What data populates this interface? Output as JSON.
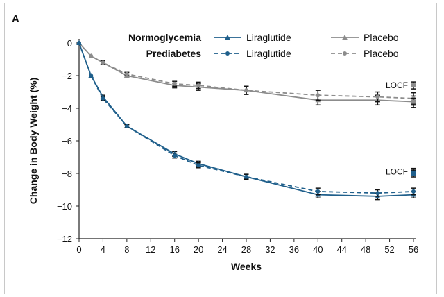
{
  "chart_data": {
    "type": "line",
    "panel_label": "A",
    "title": "",
    "xlabel": "Weeks",
    "ylabel": "Change in Body Weight (%)",
    "xlim": [
      0,
      56
    ],
    "ylim": [
      -12,
      0
    ],
    "x_ticks": [
      0,
      4,
      8,
      12,
      16,
      20,
      24,
      28,
      32,
      36,
      40,
      44,
      48,
      52,
      56
    ],
    "y_ticks": [
      0,
      -2,
      -4,
      -6,
      -8,
      -10,
      -12
    ],
    "x_tick_labels": [
      "0",
      "4",
      "8",
      "12",
      "16",
      "20",
      "24",
      "28",
      "32",
      "36",
      "40",
      "44",
      "48",
      "52",
      "56"
    ],
    "y_tick_labels": [
      "0",
      "−2",
      "−4",
      "−6",
      "−8",
      "−10",
      "−12"
    ],
    "legend": {
      "placement": "top-right",
      "group_labels": [
        "Normoglycemia",
        "Prediabetes"
      ],
      "entries": [
        {
          "group": "Normoglycemia",
          "label": "Liraglutide"
        },
        {
          "group": "Normoglycemia",
          "label": "Placebo"
        },
        {
          "group": "Prediabetes",
          "label": "Liraglutide"
        },
        {
          "group": "Prediabetes",
          "label": "Placebo"
        }
      ]
    },
    "series": [
      {
        "name": "Normoglycemia Liraglutide",
        "color": "#1f5f8b",
        "dash": false,
        "marker": "triangle",
        "x": [
          0,
          2,
          4,
          8,
          16,
          20,
          28,
          40,
          50,
          56
        ],
        "y": [
          0,
          -2.0,
          -3.3,
          -5.1,
          -6.8,
          -7.4,
          -8.2,
          -9.3,
          -9.4,
          -9.3
        ],
        "err": [
          0,
          0,
          0.1,
          0.1,
          0.15,
          0.15,
          0.15,
          0.2,
          0.2,
          0.2
        ]
      },
      {
        "name": "Normoglycemia Placebo",
        "color": "#8c8c8c",
        "dash": false,
        "marker": "triangle",
        "x": [
          0,
          2,
          4,
          8,
          16,
          20,
          28,
          40,
          50,
          56
        ],
        "y": [
          0,
          -0.8,
          -1.2,
          -2.0,
          -2.6,
          -2.7,
          -2.9,
          -3.5,
          -3.5,
          -3.6
        ],
        "err": [
          0,
          0,
          0.1,
          0.1,
          0.15,
          0.2,
          0.25,
          0.3,
          0.3,
          0.35
        ]
      },
      {
        "name": "Prediabetes Liraglutide",
        "color": "#1f5f8b",
        "dash": true,
        "marker": "circle",
        "x": [
          0,
          2,
          4,
          8,
          16,
          20,
          28,
          40,
          50,
          56
        ],
        "y": [
          0,
          -2.0,
          -3.4,
          -5.1,
          -6.9,
          -7.5,
          -8.2,
          -9.1,
          -9.2,
          -9.1
        ],
        "err": [
          0,
          0,
          0.1,
          0.1,
          0.15,
          0.15,
          0.15,
          0.2,
          0.2,
          0.2
        ]
      },
      {
        "name": "Prediabetes Placebo",
        "color": "#8c8c8c",
        "dash": true,
        "marker": "circle",
        "x": [
          0,
          2,
          4,
          8,
          16,
          20,
          28,
          40,
          50,
          56
        ],
        "y": [
          0,
          -0.8,
          -1.2,
          -1.9,
          -2.5,
          -2.6,
          -2.9,
          -3.2,
          -3.3,
          -3.4
        ],
        "err": [
          0,
          0,
          0.1,
          0.1,
          0.15,
          0.2,
          0.25,
          0.3,
          0.3,
          0.35
        ]
      }
    ],
    "annotations": [
      {
        "text": "LOCF",
        "series": [
          "Normoglycemia Placebo",
          "Prediabetes Placebo"
        ],
        "x": 56,
        "points": [
          -2.6,
          -3.6
        ],
        "color": "#8c8c8c"
      },
      {
        "text": "LOCF",
        "series": [
          "Normoglycemia Liraglutide",
          "Prediabetes Liraglutide"
        ],
        "x": 56,
        "points": [
          -7.9,
          -8.0
        ],
        "color": "#1f5f8b"
      }
    ]
  }
}
